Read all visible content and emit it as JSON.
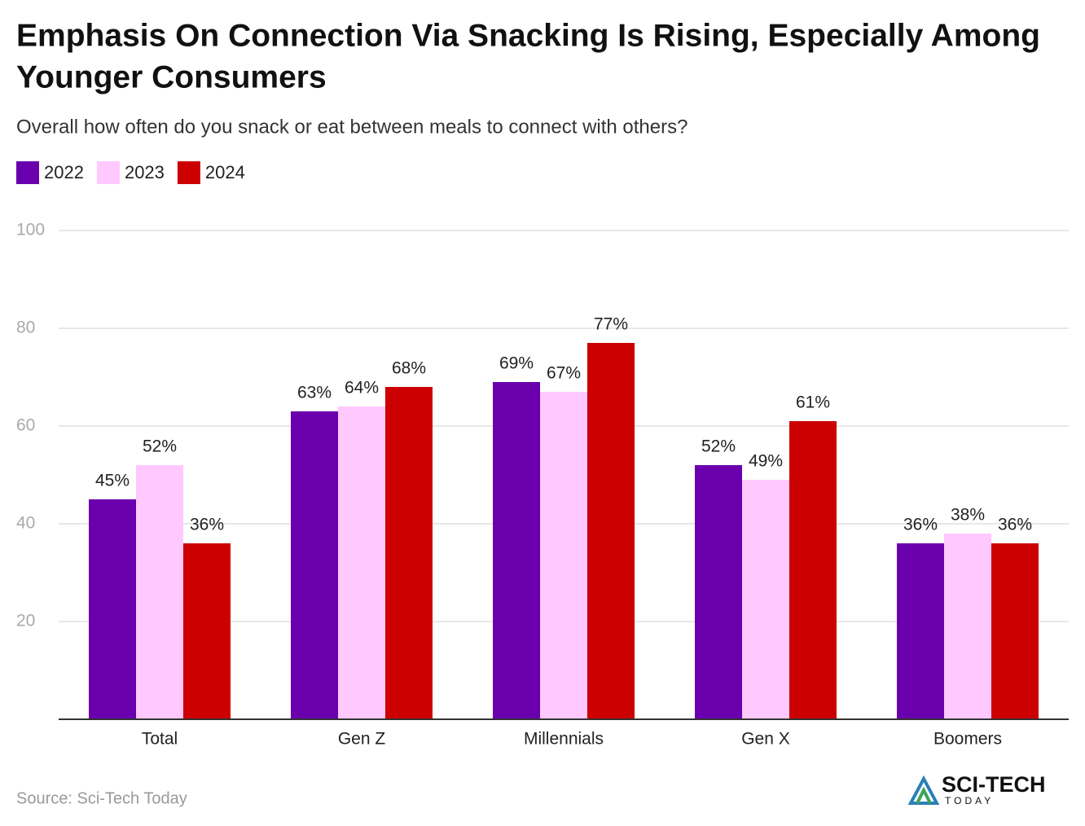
{
  "chart_data": {
    "type": "bar",
    "title": "Emphasis On Connection Via Snacking Is Rising, Especially Among Younger Consumers",
    "subtitle": "Overall how often do you snack or eat between meals to connect with others?",
    "categories": [
      "Total",
      "Gen Z",
      "Millennials",
      "Gen X",
      "Boomers"
    ],
    "series": [
      {
        "name": "2022",
        "color": "#6a00ad",
        "values": [
          45,
          63,
          69,
          52,
          36
        ],
        "value_labels": [
          "45%",
          "63%",
          "69%",
          "52%",
          "36%"
        ]
      },
      {
        "name": "2023",
        "color": "#ffc8ff",
        "values": [
          52,
          64,
          67,
          49,
          38
        ],
        "value_labels": [
          "52%",
          "64%",
          "67%",
          "49%",
          "38%"
        ]
      },
      {
        "name": "2024",
        "color": "#cc0000",
        "values": [
          36,
          68,
          77,
          61,
          36
        ],
        "value_labels": [
          "36%",
          "68%",
          "77%",
          "61%",
          "36%"
        ]
      }
    ],
    "ylim": [
      0,
      100
    ],
    "yticks": [
      20,
      40,
      60,
      80,
      100
    ],
    "grid": true,
    "source": "Source: Sci-Tech Today",
    "logo": {
      "name": "SCI-TECH",
      "tagline": "TODAY"
    }
  }
}
